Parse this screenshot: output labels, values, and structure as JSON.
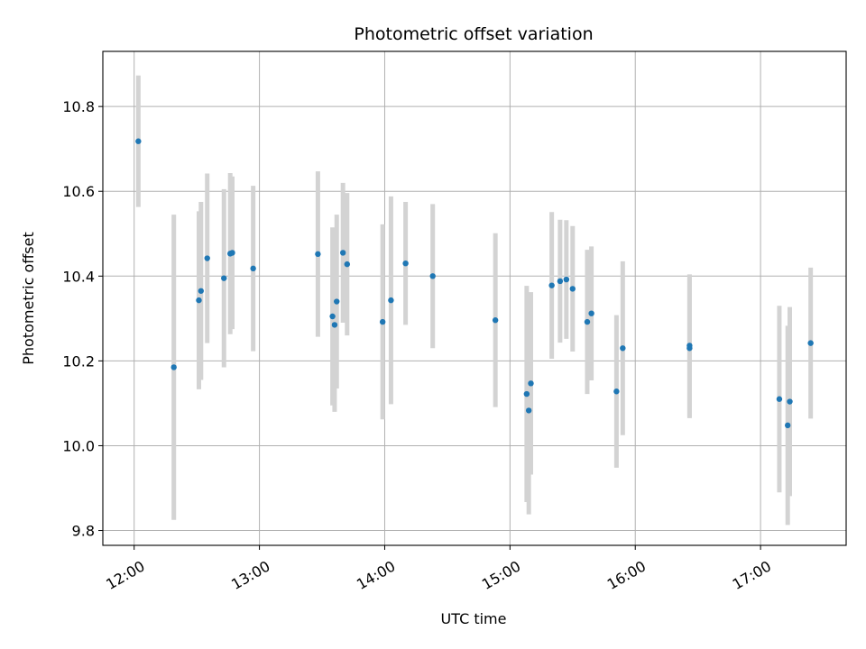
{
  "chart_data": {
    "type": "scatter",
    "title": "Photometric offset variation",
    "xlabel": "UTC time",
    "ylabel": "Photometric offset",
    "x_ticks": [
      "12:00",
      "13:00",
      "14:00",
      "15:00",
      "16:00",
      "17:00"
    ],
    "x_tick_hours": [
      12,
      13,
      14,
      15,
      16,
      17
    ],
    "xlim": [
      "11:45",
      "17:41"
    ],
    "y_ticks": [
      9.8,
      10.0,
      10.2,
      10.4,
      10.6,
      10.8
    ],
    "ylim": [
      9.765,
      10.93
    ],
    "grid": true,
    "marker_color": "#1f77b4",
    "errorbar_color": "#d3d3d3",
    "series": [
      {
        "points": [
          {
            "time": "12:02",
            "y": 10.718,
            "err": 0.155
          },
          {
            "time": "12:19",
            "y": 10.185,
            "err": 0.36
          },
          {
            "time": "12:31",
            "y": 10.343,
            "err": 0.21
          },
          {
            "time": "12:32",
            "y": 10.365,
            "err": 0.21
          },
          {
            "time": "12:35",
            "y": 10.442,
            "err": 0.2
          },
          {
            "time": "12:43",
            "y": 10.395,
            "err": 0.21
          },
          {
            "time": "12:46",
            "y": 10.453,
            "err": 0.19
          },
          {
            "time": "12:47",
            "y": 10.455,
            "err": 0.18
          },
          {
            "time": "12:57",
            "y": 10.418,
            "err": 0.195
          },
          {
            "time": "13:28",
            "y": 10.452,
            "err": 0.195
          },
          {
            "time": "13:35",
            "y": 10.305,
            "err": 0.21
          },
          {
            "time": "13:36",
            "y": 10.285,
            "err": 0.205
          },
          {
            "time": "13:37",
            "y": 10.34,
            "err": 0.205
          },
          {
            "time": "13:40",
            "y": 10.455,
            "err": 0.165
          },
          {
            "time": "13:42",
            "y": 10.428,
            "err": 0.168
          },
          {
            "time": "13:59",
            "y": 10.292,
            "err": 0.23
          },
          {
            "time": "14:03",
            "y": 10.343,
            "err": 0.245
          },
          {
            "time": "14:10",
            "y": 10.43,
            "err": 0.145
          },
          {
            "time": "14:23",
            "y": 10.4,
            "err": 0.17
          },
          {
            "time": "14:53",
            "y": 10.296,
            "err": 0.205
          },
          {
            "time": "15:08",
            "y": 10.122,
            "err": 0.255
          },
          {
            "time": "15:09",
            "y": 10.083,
            "err": 0.245
          },
          {
            "time": "15:10",
            "y": 10.147,
            "err": 0.215
          },
          {
            "time": "15:20",
            "y": 10.378,
            "err": 0.173
          },
          {
            "time": "15:24",
            "y": 10.388,
            "err": 0.145
          },
          {
            "time": "15:27",
            "y": 10.392,
            "err": 0.14
          },
          {
            "time": "15:30",
            "y": 10.37,
            "err": 0.148
          },
          {
            "time": "15:37",
            "y": 10.292,
            "err": 0.17
          },
          {
            "time": "15:39",
            "y": 10.312,
            "err": 0.158
          },
          {
            "time": "15:51",
            "y": 10.128,
            "err": 0.18
          },
          {
            "time": "15:54",
            "y": 10.23,
            "err": 0.205
          },
          {
            "time": "16:26",
            "y": 10.236,
            "err": 0.168
          },
          {
            "time": "16:26",
            "y": 10.23,
            "err": 0.165
          },
          {
            "time": "17:09",
            "y": 10.11,
            "err": 0.22
          },
          {
            "time": "17:13",
            "y": 10.048,
            "err": 0.235
          },
          {
            "time": "17:14",
            "y": 10.104,
            "err": 0.223
          },
          {
            "time": "17:24",
            "y": 10.242,
            "err": 0.178
          }
        ]
      }
    ]
  }
}
